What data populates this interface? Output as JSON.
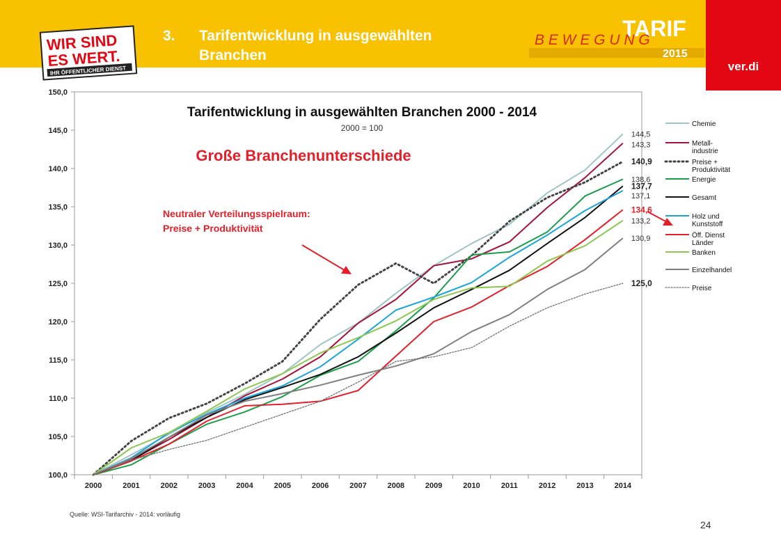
{
  "header": {
    "title_number": "3.",
    "title_line1": "Tarifentwicklung in ausgewählten",
    "title_line2": "Branchen",
    "logo_left_line1": "WIR SIND",
    "logo_left_line2": "ES WERT.",
    "logo_left_line3": "IHR ÖFFENTLICHER DIENST",
    "campaign_word1": "TARIF",
    "campaign_word2": "B E W E G U N G",
    "campaign_year": "2015",
    "brand": "ver.di"
  },
  "colors": {
    "header_band": "#f8c200",
    "brand_red": "#e30613",
    "annotation_red": "#e3202a"
  },
  "annotations": {
    "headline": "Große Branchenunterschiede",
    "note_line1": "Neutraler Verteilungsspielraum:",
    "note_line2": "Preise + Produktivität"
  },
  "footer": {
    "source": "Quelle: WSI-Tarifarchiv - 2014: vorläufig",
    "page_number": "24"
  },
  "chart_data": {
    "type": "line",
    "title": "Tarifentwicklung in ausgewählten Branchen 2000 - 2014",
    "subtitle": "2000 = 100",
    "xlabel": "",
    "ylabel": "",
    "ylim": [
      100,
      150
    ],
    "y_ticks": [
      "100,0",
      "105,0",
      "110,0",
      "115,0",
      "120,0",
      "125,0",
      "130,0",
      "135,0",
      "140,0",
      "145,0",
      "150,0"
    ],
    "x": [
      "2000",
      "2001",
      "2002",
      "2003",
      "2004",
      "2005",
      "2006",
      "2007",
      "2008",
      "2009",
      "2010",
      "2011",
      "2012",
      "2013",
      "2014"
    ],
    "grid": false,
    "legend_position": "right",
    "series": [
      {
        "name": "Chemie",
        "color": "#9fc4c4",
        "width": 2,
        "dash": "solid",
        "end_label": "144,5",
        "end_label_bold": false,
        "end_label_color": "#333333",
        "values": [
          100.0,
          102.6,
          105.3,
          108.1,
          110.5,
          113.2,
          117.0,
          119.8,
          123.7,
          127.3,
          130.2,
          132.7,
          136.8,
          139.8,
          144.5
        ]
      },
      {
        "name": "Metall-\nindustrie",
        "color": "#a3123a",
        "width": 2,
        "dash": "solid",
        "end_label": "143,3",
        "end_label_bold": false,
        "end_label_color": "#333333",
        "values": [
          100.0,
          101.9,
          104.6,
          107.5,
          110.3,
          112.5,
          115.4,
          119.8,
          122.9,
          127.3,
          128.2,
          130.4,
          134.9,
          138.8,
          143.3
        ]
      },
      {
        "name": "Preise +\nProduktivität",
        "color": "#444444",
        "width": 3,
        "dash": "dot",
        "end_label": "140,9",
        "end_label_bold": true,
        "end_label_color": "#222222",
        "values": [
          100.0,
          104.4,
          107.4,
          109.3,
          111.9,
          114.8,
          120.3,
          124.8,
          127.6,
          125.0,
          128.6,
          133.1,
          136.2,
          138.2,
          140.9
        ]
      },
      {
        "name": "Energie",
        "color": "#1a9e4a",
        "width": 2,
        "dash": "solid",
        "end_label": "138,6",
        "end_label_bold": false,
        "end_label_color": "#333333",
        "values": [
          100.0,
          101.3,
          104.0,
          106.6,
          108.2,
          110.2,
          113.0,
          114.8,
          118.8,
          123.1,
          128.7,
          129.1,
          131.7,
          136.4,
          138.6
        ]
      },
      {
        "name": "Gesamt",
        "color": "#111111",
        "width": 2,
        "dash": "solid",
        "end_label": "137,7",
        "end_label_bold": true,
        "end_label_color": "#222222",
        "values": [
          100.0,
          101.8,
          104.9,
          107.5,
          109.8,
          111.4,
          113.1,
          115.4,
          118.5,
          121.8,
          124.2,
          126.7,
          130.2,
          133.6,
          137.7
        ]
      },
      {
        "name": "Holz und\nKunststoff",
        "color": "#1aa3dd",
        "width": 2,
        "dash": "solid",
        "end_label": "137,1",
        "end_label_bold": false,
        "end_label_color": "#333333",
        "values": [
          100.0,
          102.2,
          105.5,
          107.9,
          110.0,
          111.6,
          114.1,
          117.7,
          121.5,
          123.2,
          125.1,
          128.4,
          131.3,
          134.5,
          137.1
        ]
      },
      {
        "name": "Öff. Dienst\nLänder",
        "color": "#e3202a",
        "width": 2,
        "dash": "solid",
        "end_label": "134,6",
        "end_label_bold": true,
        "end_label_color": "#e3202a",
        "values": [
          100.0,
          101.8,
          104.0,
          107.0,
          109.0,
          109.2,
          109.6,
          111.0,
          115.5,
          120.0,
          121.9,
          124.7,
          127.2,
          130.7,
          134.6
        ]
      },
      {
        "name": "Banken",
        "color": "#8cc850",
        "width": 2,
        "dash": "solid",
        "end_label": "133,2",
        "end_label_bold": false,
        "end_label_color": "#333333",
        "values": [
          100.0,
          103.5,
          105.5,
          108.3,
          111.2,
          113.2,
          115.9,
          117.9,
          120.1,
          122.9,
          124.4,
          124.6,
          127.9,
          129.9,
          133.2
        ]
      },
      {
        "name": "Einzelhandel",
        "color": "#7f7f7f",
        "width": 2,
        "dash": "solid",
        "end_label": "130,9",
        "end_label_bold": false,
        "end_label_color": "#333333",
        "values": [
          100.0,
          102.1,
          104.9,
          107.8,
          109.6,
          110.6,
          111.7,
          113.0,
          114.2,
          115.8,
          118.7,
          120.9,
          124.2,
          126.8,
          130.9
        ]
      },
      {
        "name": "Preise",
        "color": "#707070",
        "width": 1.3,
        "dash": "dot",
        "end_label": "125,0",
        "end_label_bold": true,
        "end_label_color": "#222222",
        "values": [
          100.0,
          101.9,
          103.3,
          104.5,
          106.2,
          107.9,
          109.6,
          112.1,
          114.8,
          115.4,
          116.6,
          119.4,
          121.8,
          123.6,
          125.0
        ]
      }
    ]
  }
}
